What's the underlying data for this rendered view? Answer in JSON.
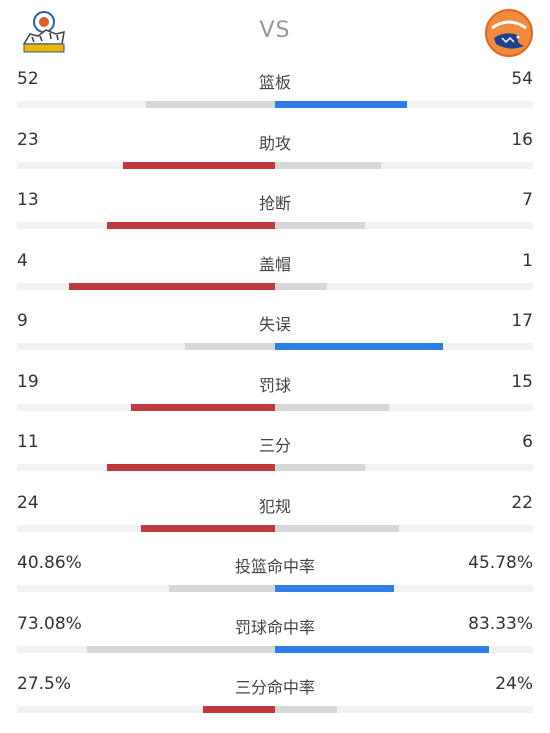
{
  "header": {
    "vs_label": "VS",
    "left_team_logo": "tiger-logo-icon",
    "right_team_logo": "shark-logo-icon"
  },
  "colors": {
    "left_win": "#c0393b",
    "right_win": "#2f7ee6",
    "lose": "#d7d7d7",
    "track": "#f2f2f2"
  },
  "stats": [
    {
      "label": "篮板",
      "left": "52",
      "right": "54",
      "left_bar": 0.5,
      "right_bar": 0.51,
      "winner": "right"
    },
    {
      "label": "助攻",
      "left": "23",
      "right": "16",
      "left_bar": 0.59,
      "right_bar": 0.41,
      "winner": "left"
    },
    {
      "label": "抢断",
      "left": "13",
      "right": "7",
      "left_bar": 0.65,
      "right_bar": 0.35,
      "winner": "left"
    },
    {
      "label": "盖帽",
      "left": "4",
      "right": "1",
      "left_bar": 0.8,
      "right_bar": 0.2,
      "winner": "left"
    },
    {
      "label": "失误",
      "left": "9",
      "right": "17",
      "left_bar": 0.35,
      "right_bar": 0.65,
      "winner": "right"
    },
    {
      "label": "罚球",
      "left": "19",
      "right": "15",
      "left_bar": 0.56,
      "right_bar": 0.44,
      "winner": "left"
    },
    {
      "label": "三分",
      "left": "11",
      "right": "6",
      "left_bar": 0.65,
      "right_bar": 0.35,
      "winner": "left"
    },
    {
      "label": "犯规",
      "left": "24",
      "right": "22",
      "left_bar": 0.52,
      "right_bar": 0.48,
      "winner": "left"
    },
    {
      "label": "投篮命中率",
      "left": "40.86%",
      "right": "45.78%",
      "left_bar": 0.41,
      "right_bar": 0.46,
      "winner": "right"
    },
    {
      "label": "罚球命中率",
      "left": "73.08%",
      "right": "83.33%",
      "left_bar": 0.73,
      "right_bar": 0.83,
      "winner": "right"
    },
    {
      "label": "三分命中率",
      "left": "27.5%",
      "right": "24%",
      "left_bar": 0.28,
      "right_bar": 0.24,
      "winner": "left"
    }
  ]
}
